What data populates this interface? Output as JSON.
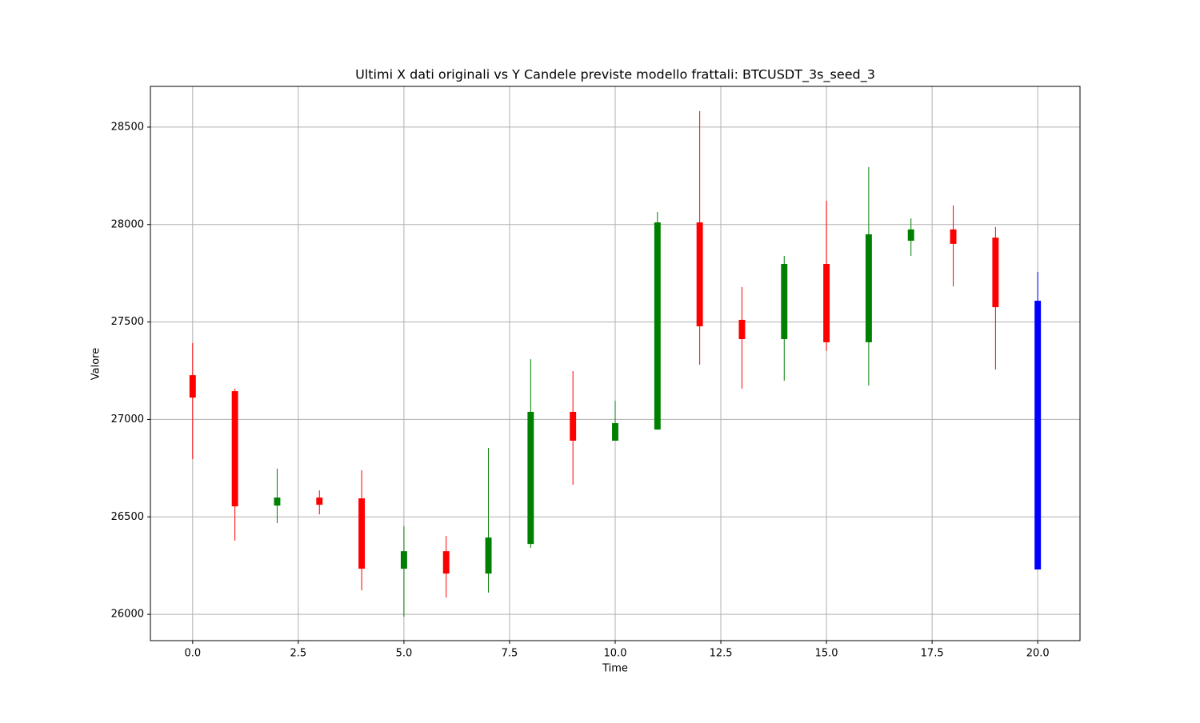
{
  "chart_data": {
    "type": "candlestick",
    "title": "Ultimi X dati originali vs Y Candele previste modello frattali: BTCUSDT_3s_seed_3",
    "xlabel": "Time",
    "ylabel": "Valore",
    "x": [
      0,
      1,
      2,
      3,
      4,
      5,
      6,
      7,
      8,
      9,
      10,
      11,
      12,
      13,
      14,
      15,
      16,
      17,
      18,
      19,
      20
    ],
    "open": [
      27227,
      27145,
      26558,
      26599,
      26595,
      26234,
      26324,
      26209,
      26361,
      27039,
      26891,
      26948,
      28011,
      27511,
      27412,
      27798,
      27396,
      27917,
      27975,
      27933,
      27609
    ],
    "high": [
      27392,
      27158,
      26747,
      26636,
      26739,
      26452,
      26402,
      26854,
      27309,
      27248,
      27096,
      28065,
      28582,
      27679,
      27839,
      28122,
      28295,
      28032,
      28098,
      27987,
      27757
    ],
    "low": [
      26796,
      26378,
      26468,
      26513,
      26123,
      25988,
      26086,
      26111,
      26341,
      26665,
      26891,
      26948,
      27281,
      27158,
      27199,
      27351,
      27174,
      27839,
      27683,
      27256,
      26230
    ],
    "close": [
      27112,
      26554,
      26599,
      26562,
      26234,
      26324,
      26209,
      26394,
      27039,
      26891,
      26981,
      28011,
      27478,
      27412,
      27798,
      27396,
      27950,
      27975,
      27901,
      27576,
      26230
    ],
    "colors": [
      "red",
      "red",
      "green",
      "red",
      "red",
      "green",
      "red",
      "green",
      "green",
      "red",
      "green",
      "green",
      "red",
      "red",
      "green",
      "red",
      "green",
      "green",
      "red",
      "red",
      "blue"
    ],
    "xlim": [
      -1,
      21
    ],
    "ylim": [
      25865,
      28709
    ],
    "xticks": [
      {
        "value": 0,
        "label": "0.0"
      },
      {
        "value": 2.5,
        "label": "2.5"
      },
      {
        "value": 5,
        "label": "5.0"
      },
      {
        "value": 7.5,
        "label": "7.5"
      },
      {
        "value": 10,
        "label": "10.0"
      },
      {
        "value": 12.5,
        "label": "12.5"
      },
      {
        "value": 15,
        "label": "15.0"
      },
      {
        "value": 17.5,
        "label": "17.5"
      },
      {
        "value": 20,
        "label": "20.0"
      }
    ],
    "yticks": [
      26000,
      26500,
      27000,
      27500,
      28000,
      28500
    ],
    "grid": true
  }
}
